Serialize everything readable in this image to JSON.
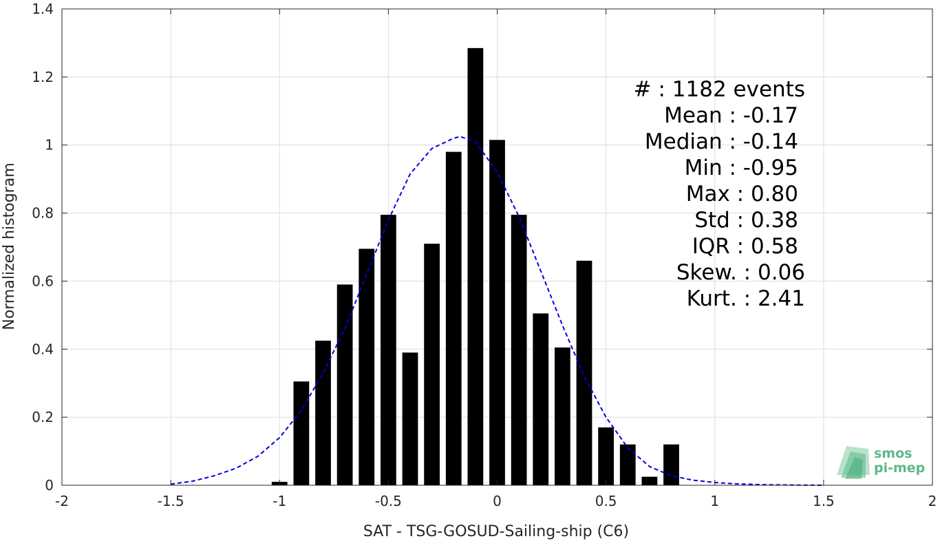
{
  "chart_data": {
    "type": "bar",
    "title": "",
    "xlabel": "SAT - TSG-GOSUD-Sailing-ship (C6)",
    "ylabel": "Normalized histogram",
    "xlim": [
      -2,
      2
    ],
    "ylim": [
      0,
      1.4
    ],
    "x_ticks": [
      -2,
      -1.5,
      -1,
      -0.5,
      0,
      0.5,
      1,
      1.5,
      2
    ],
    "x_tick_labels": [
      "-2",
      "-1.5",
      "-1",
      "-0.5",
      "0",
      "0.5",
      "1",
      "1.5",
      "2"
    ],
    "y_ticks": [
      0,
      0.2,
      0.4,
      0.6,
      0.8,
      1,
      1.2,
      1.4
    ],
    "y_tick_labels": [
      "0",
      "0.2",
      "0.4",
      "0.6",
      "0.8",
      "1",
      "1.2",
      "1.4"
    ],
    "grid": true,
    "bin_width": 0.1,
    "series": [
      {
        "x": [
          -1.0,
          -0.9,
          -0.8,
          -0.7,
          -0.6,
          -0.5,
          -0.4,
          -0.3,
          -0.2,
          -0.1,
          0.0,
          0.1,
          0.2,
          0.3,
          0.4,
          0.5,
          0.6,
          0.7,
          0.8
        ],
        "values": [
          0.01,
          0.305,
          0.425,
          0.59,
          0.695,
          0.795,
          0.39,
          0.71,
          0.98,
          1.285,
          1.015,
          0.795,
          0.505,
          0.405,
          0.66,
          0.17,
          0.12,
          0.025,
          0.12
        ],
        "color": "#000000"
      },
      {
        "type": "line",
        "style": "dashed",
        "color": "#0000e0",
        "x": [
          -1.5,
          -1.4,
          -1.3,
          -1.2,
          -1.1,
          -1.0,
          -0.9,
          -0.8,
          -0.7,
          -0.6,
          -0.5,
          -0.4,
          -0.3,
          -0.2,
          -0.17,
          -0.1,
          0.0,
          0.1,
          0.2,
          0.3,
          0.4,
          0.5,
          0.6,
          0.7,
          0.8,
          0.9,
          1.0,
          1.1,
          1.2,
          1.3,
          1.4,
          1.5
        ],
        "values": [
          0.003,
          0.012,
          0.028,
          0.05,
          0.085,
          0.14,
          0.22,
          0.33,
          0.46,
          0.62,
          0.78,
          0.915,
          0.99,
          1.02,
          1.025,
          1.01,
          0.92,
          0.79,
          0.63,
          0.47,
          0.32,
          0.2,
          0.11,
          0.055,
          0.028,
          0.015,
          0.008,
          0.004,
          0.002,
          0.001,
          0.0005,
          0.0
        ]
      }
    ],
    "annotations": [
      "#  : 1182 events",
      "Mean : -0.17",
      "Median : -0.14",
      "Min : -0.95",
      "Max : 0.80",
      "Std : 0.38",
      "IQR : 0.58",
      "Skew. : 0.06",
      "Kurt. : 2.41"
    ]
  },
  "logo": {
    "line1": "smos",
    "line2": "pi-mep",
    "color": "#5cb88a"
  }
}
